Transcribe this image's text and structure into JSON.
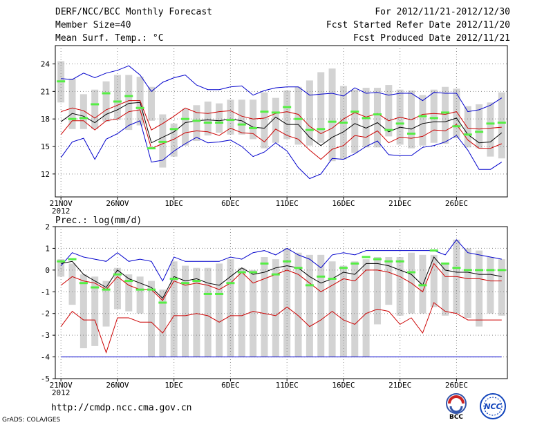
{
  "header": {
    "title": "DERF/NCC/BCC Monthly Forecast",
    "member_size": "Member Size=40",
    "variable1": "Mean Surf. Temp.: °C",
    "period": "For 2012/11/21-2012/12/30",
    "started": "Fcst Started Refer Date 2012/11/20",
    "produced": "Fcst Produced Date 2012/11/21"
  },
  "footer": {
    "url": "http://cmdp.ncc.cma.gov.cn",
    "credit": "GrADS: COLA/IGES",
    "logo1_label": "BCC",
    "logo2_label": "NCC"
  },
  "colors": {
    "box": "#d3d3d3",
    "median": "#55ee44",
    "mean": "#000000",
    "inner_band": "#cc0000",
    "outer_band": "#0000cc",
    "grid": "#888888"
  },
  "chart_data": [
    {
      "type": "line",
      "title": "Mean Surf. Temp.: °C",
      "x_tick_labels": [
        "21NOV",
        "26NOV",
        "1DEC",
        "6DEC",
        "11DEC",
        "16DEC",
        "21DEC",
        "26DEC"
      ],
      "x_year_label": "2012",
      "x_tick_days": [
        0,
        5,
        10,
        15,
        20,
        25,
        30,
        35
      ],
      "xlim": [
        -0.5,
        39.5
      ],
      "ylim": [
        9.5,
        26
      ],
      "y_ticks": [
        12,
        15,
        18,
        21,
        24
      ],
      "days": [
        0,
        1,
        2,
        3,
        4,
        5,
        6,
        7,
        8,
        9,
        10,
        11,
        12,
        13,
        14,
        15,
        16,
        17,
        18,
        19,
        20,
        21,
        22,
        23,
        24,
        25,
        26,
        27,
        28,
        29,
        30,
        31,
        32,
        33,
        34,
        35,
        36,
        37,
        38,
        39
      ],
      "box_low": [
        19.8,
        16.9,
        16.9,
        16.9,
        17.7,
        17.9,
        16.8,
        17.3,
        17.8,
        12.7,
        13.9,
        15.1,
        15.6,
        16.2,
        16.5,
        16.3,
        16.3,
        15.8,
        14.8,
        15.4,
        15.8,
        15.2,
        15.1,
        15.4,
        13.4,
        13.6,
        14.3,
        14.9,
        14.9,
        16.1,
        15.2,
        14.8,
        15.1,
        15.4,
        15.3,
        15.9,
        14.9,
        14.8,
        13.9,
        13.7
      ],
      "box_high": [
        24.3,
        22.4,
        20.7,
        21.2,
        22.1,
        22.8,
        22.8,
        22.6,
        21.5,
        18.5,
        17.5,
        19.1,
        19.5,
        19.9,
        19.7,
        20.1,
        20.1,
        20.1,
        20.9,
        20.3,
        21.1,
        21.5,
        22.2,
        23.1,
        23.5,
        21.6,
        21.2,
        21.4,
        21.4,
        21.7,
        21.2,
        21.1,
        20.6,
        21.2,
        21.5,
        21.3,
        19.4,
        19.6,
        19.8,
        20.9
      ],
      "median": [
        22.1,
        18.0,
        18.1,
        19.6,
        20.8,
        19.9,
        20.5,
        19.2,
        14.8,
        15.5,
        16.9,
        18.0,
        17.8,
        17.6,
        17.6,
        17.9,
        17.4,
        17.0,
        18.8,
        18.7,
        19.3,
        18.0,
        16.8,
        16.9,
        17.7,
        17.6,
        18.8,
        18.1,
        18.5,
        16.8,
        17.5,
        16.4,
        18.3,
        18.1,
        18.7,
        17.2,
        16.3,
        16.6,
        17.5,
        17.6
      ],
      "series": [
        {
          "name": "mean",
          "values": [
            17.7,
            18.6,
            18.3,
            17.6,
            18.5,
            19.0,
            19.7,
            19.8,
            15.4,
            16.0,
            16.6,
            17.6,
            17.8,
            17.9,
            17.8,
            18.0,
            17.8,
            17.1,
            17.0,
            18.2,
            17.4,
            17.4,
            16.0,
            15.1,
            16.0,
            16.6,
            17.5,
            17.0,
            17.6,
            16.6,
            17.1,
            16.9,
            17.5,
            17.7,
            17.7,
            18.1,
            16.3,
            15.4,
            15.5,
            16.5
          ]
        },
        {
          "name": "upper_1sd",
          "values": [
            18.8,
            19.2,
            18.9,
            18.1,
            19.0,
            19.5,
            20.0,
            20.0,
            16.8,
            17.5,
            18.3,
            19.2,
            18.7,
            18.6,
            18.8,
            18.9,
            18.3,
            18.0,
            18.1,
            18.6,
            18.8,
            18.5,
            17.2,
            16.4,
            17.0,
            18.0,
            18.7,
            18.2,
            18.6,
            17.8,
            18.2,
            17.9,
            18.5,
            18.6,
            18.5,
            18.8,
            17.0,
            16.9,
            17.0,
            17.1
          ]
        },
        {
          "name": "lower_1sd",
          "values": [
            16.3,
            17.8,
            17.8,
            16.8,
            17.8,
            18.0,
            18.8,
            19.0,
            14.8,
            15.3,
            15.8,
            16.5,
            16.7,
            16.6,
            16.2,
            17.0,
            16.5,
            16.4,
            15.5,
            16.9,
            16.2,
            15.8,
            14.6,
            13.6,
            14.7,
            15.1,
            16.2,
            16.0,
            16.7,
            15.4,
            16.0,
            15.9,
            16.1,
            16.8,
            16.7,
            17.4,
            15.7,
            14.8,
            14.8,
            15.3
          ]
        },
        {
          "name": "upper_2sd",
          "values": [
            22.4,
            22.3,
            23.0,
            22.5,
            23.0,
            23.3,
            23.8,
            22.8,
            21.0,
            22.0,
            22.5,
            22.8,
            21.7,
            21.2,
            21.2,
            21.5,
            21.6,
            20.6,
            21.1,
            21.4,
            21.5,
            21.5,
            20.6,
            20.7,
            20.8,
            20.5,
            21.4,
            20.8,
            20.9,
            20.6,
            20.8,
            20.8,
            20.0,
            20.9,
            20.8,
            20.8,
            18.8,
            19.0,
            19.5,
            20.3
          ]
        },
        {
          "name": "lower_2sd",
          "values": [
            13.8,
            15.5,
            15.9,
            13.6,
            15.8,
            16.4,
            17.3,
            17.8,
            13.3,
            13.5,
            14.5,
            15.3,
            16.0,
            15.4,
            15.5,
            15.7,
            15.0,
            13.9,
            14.4,
            15.4,
            14.5,
            12.7,
            11.5,
            12.0,
            13.7,
            13.6,
            14.2,
            15.0,
            15.6,
            14.1,
            14.0,
            14.0,
            14.9,
            15.1,
            15.5,
            16.2,
            14.6,
            12.5,
            12.5,
            13.3
          ]
        }
      ]
    },
    {
      "type": "line",
      "title": "Prec.: log(mm/d)",
      "x_tick_labels": [
        "21NOV",
        "26NOV",
        "1DEC",
        "6DEC",
        "11DEC",
        "16DEC",
        "21DEC",
        "26DEC"
      ],
      "x_year_label": "2012",
      "x_tick_days": [
        0,
        5,
        10,
        15,
        20,
        25,
        30,
        35
      ],
      "xlim": [
        -0.5,
        39.5
      ],
      "ylim": [
        -5,
        2
      ],
      "y_ticks": [
        -5,
        -4,
        -3,
        -2,
        -1,
        0,
        1,
        2
      ],
      "days": [
        0,
        1,
        2,
        3,
        4,
        5,
        6,
        7,
        8,
        9,
        10,
        11,
        12,
        13,
        14,
        15,
        16,
        17,
        18,
        19,
        20,
        21,
        22,
        23,
        24,
        25,
        26,
        27,
        28,
        29,
        30,
        31,
        32,
        33,
        34,
        35,
        36,
        37,
        38,
        39
      ],
      "box_low": [
        -0.3,
        -1.6,
        -3.6,
        -3.5,
        -2.6,
        -1.8,
        -1.9,
        -2.0,
        -4.0,
        -4.0,
        -4.0,
        -4.0,
        -4.0,
        -4.0,
        -4.0,
        -4.0,
        -4.0,
        -4.0,
        -4.0,
        -4.0,
        -4.0,
        -4.0,
        -4.0,
        -4.0,
        -4.0,
        -4.0,
        -4.0,
        -4.0,
        -2.5,
        -1.6,
        -2.1,
        -2.0,
        -2.0,
        -1.7,
        -2.1,
        -2.0,
        -2.2,
        -2.6,
        -2.0,
        -2.1
      ],
      "box_high": [
        0.5,
        0.3,
        -0.2,
        -0.3,
        -0.5,
        0.1,
        -0.2,
        -0.3,
        -0.5,
        -0.9,
        0.4,
        0.2,
        0.1,
        0.1,
        0.3,
        0.5,
        0.1,
        0.0,
        0.6,
        0.5,
        1.0,
        0.8,
        0.7,
        0.7,
        0.4,
        0.2,
        0.4,
        0.5,
        0.6,
        0.6,
        0.6,
        0.8,
        0.7,
        0.7,
        0.3,
        1.4,
        1.0,
        0.9,
        0.6,
        0.5
      ],
      "median": [
        0.4,
        0.5,
        -0.6,
        -0.8,
        -0.9,
        -0.2,
        -0.5,
        -0.9,
        -0.9,
        -1.5,
        -0.4,
        -0.6,
        -0.5,
        -1.1,
        -1.1,
        -0.6,
        -0.1,
        -0.1,
        0.3,
        -0.2,
        0.4,
        0.1,
        -0.7,
        -0.3,
        -0.4,
        0.1,
        0.3,
        0.6,
        0.5,
        0.4,
        0.4,
        -0.1,
        -0.7,
        0.9,
        0.3,
        0.1,
        0.0,
        0.0,
        0.0,
        0.0
      ],
      "series": [
        {
          "name": "upper",
          "values": [
            0.2,
            0.8,
            0.6,
            0.5,
            0.4,
            0.8,
            0.4,
            0.5,
            0.4,
            -0.5,
            0.6,
            0.4,
            0.4,
            0.4,
            0.4,
            0.6,
            0.5,
            0.8,
            0.9,
            0.7,
            1.0,
            0.7,
            0.5,
            0.1,
            0.7,
            0.8,
            0.7,
            0.9,
            0.9,
            0.9,
            0.9,
            0.9,
            0.9,
            0.9,
            0.7,
            1.4,
            0.8,
            0.7,
            0.6,
            0.5
          ]
        },
        {
          "name": "mean",
          "values": [
            0.3,
            0.4,
            -0.2,
            -0.5,
            -0.8,
            0.0,
            -0.4,
            -0.6,
            -0.8,
            -1.3,
            -0.3,
            -0.5,
            -0.4,
            -0.6,
            -0.7,
            -0.3,
            0.1,
            -0.2,
            -0.1,
            0.1,
            0.2,
            0.1,
            -0.3,
            -0.6,
            -0.4,
            -0.1,
            -0.2,
            0.3,
            0.3,
            0.2,
            0.0,
            -0.2,
            -0.7,
            0.6,
            0.0,
            -0.1,
            -0.1,
            -0.2,
            -0.2,
            -0.3
          ]
        },
        {
          "name": "mean_minus",
          "values": [
            -0.7,
            -0.3,
            -0.5,
            -0.6,
            -0.9,
            -0.3,
            -0.7,
            -0.9,
            -0.9,
            -1.4,
            -0.5,
            -0.7,
            -0.6,
            -0.7,
            -0.9,
            -0.6,
            -0.1,
            -0.6,
            -0.4,
            -0.2,
            0.0,
            -0.2,
            -0.6,
            -1.0,
            -0.7,
            -0.4,
            -0.5,
            0.0,
            0.0,
            -0.1,
            -0.3,
            -0.6,
            -1.0,
            0.3,
            -0.3,
            -0.3,
            -0.4,
            -0.4,
            -0.5,
            -0.5
          ]
        },
        {
          "name": "lower",
          "values": [
            -2.6,
            -1.9,
            -2.3,
            -2.3,
            -3.8,
            -2.2,
            -2.2,
            -2.4,
            -2.4,
            -2.9,
            -2.1,
            -2.1,
            -2.0,
            -2.1,
            -2.4,
            -2.1,
            -2.1,
            -1.9,
            -2.0,
            -2.1,
            -1.7,
            -2.1,
            -2.6,
            -2.3,
            -1.9,
            -2.3,
            -2.5,
            -2.0,
            -1.8,
            -1.9,
            -2.5,
            -2.2,
            -2.9,
            -1.5,
            -1.9,
            -2.0,
            -2.3,
            -2.3,
            -2.3,
            -2.3
          ]
        },
        {
          "name": "floor",
          "values": [
            -4,
            -4,
            -4,
            -4,
            -4,
            -4,
            -4,
            -4,
            -4,
            -4,
            -4,
            -4,
            -4,
            -4,
            -4,
            -4,
            -4,
            -4,
            -4,
            -4,
            -4,
            -4,
            -4,
            -4,
            -4,
            -4,
            -4,
            -4,
            -4,
            -4,
            -4,
            -4,
            -4,
            -4,
            -4,
            -4,
            -4,
            -4,
            -4,
            -4
          ]
        }
      ]
    }
  ]
}
